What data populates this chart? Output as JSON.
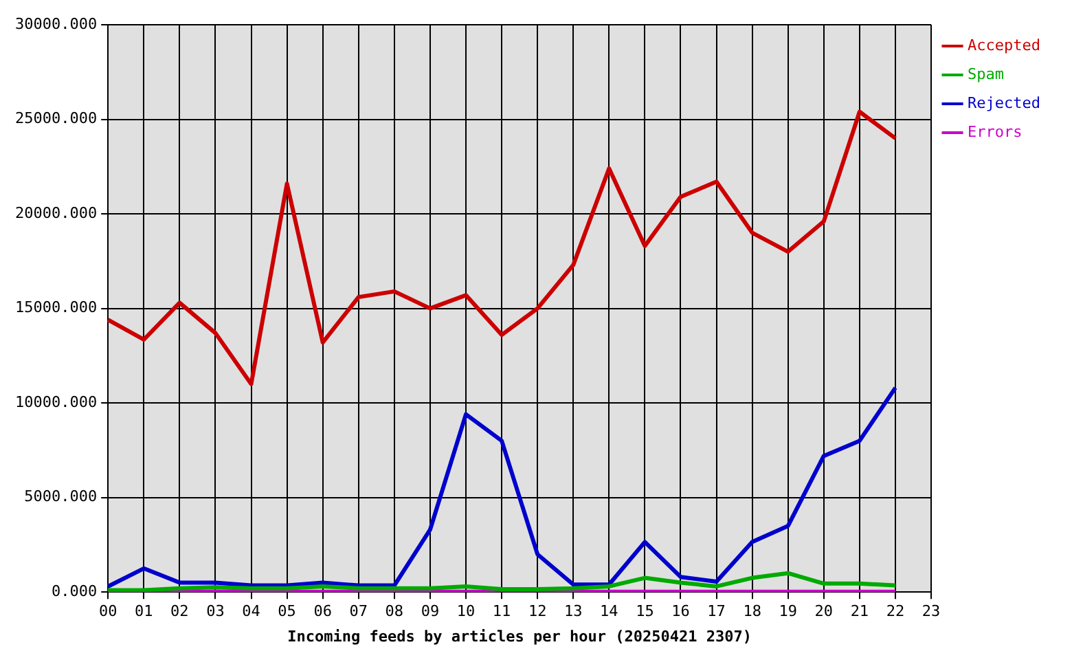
{
  "chart_data": {
    "type": "line",
    "xlabel": "Incoming feeds by articles per hour (20250421 2307)",
    "categories": [
      "00",
      "01",
      "02",
      "03",
      "04",
      "05",
      "06",
      "07",
      "08",
      "09",
      "10",
      "11",
      "12",
      "13",
      "14",
      "15",
      "16",
      "17",
      "18",
      "19",
      "20",
      "21",
      "22",
      "23"
    ],
    "series": [
      {
        "name": "Accepted",
        "color": "#cc0000",
        "values": [
          14400,
          13350,
          15300,
          13700,
          11000,
          21600,
          13200,
          15600,
          15900,
          15000,
          15700,
          13600,
          15000,
          17300,
          22400,
          18300,
          20900,
          21700,
          19000,
          18000,
          19600,
          25400,
          24000,
          null
        ]
      },
      {
        "name": "Spam",
        "color": "#00aa00",
        "values": [
          100,
          100,
          200,
          250,
          200,
          200,
          300,
          200,
          200,
          200,
          300,
          150,
          150,
          200,
          300,
          750,
          500,
          300,
          750,
          1000,
          450,
          450,
          350,
          null
        ]
      },
      {
        "name": "Rejected",
        "color": "#0000cc",
        "values": [
          300,
          1250,
          500,
          500,
          350,
          350,
          500,
          350,
          350,
          3300,
          9400,
          8000,
          2000,
          400,
          400,
          2650,
          800,
          550,
          2650,
          3500,
          7200,
          8000,
          10800,
          null
        ]
      },
      {
        "name": "Errors",
        "color": "#cc00cc",
        "values": [
          20,
          20,
          20,
          20,
          20,
          20,
          20,
          20,
          20,
          20,
          20,
          20,
          20,
          20,
          20,
          20,
          20,
          20,
          20,
          20,
          20,
          20,
          20,
          null
        ]
      }
    ],
    "ylim": [
      0,
      30000
    ],
    "yticks": [
      {
        "value": 0,
        "label": "0.000"
      },
      {
        "value": 5000,
        "label": "5000.000"
      },
      {
        "value": 10000,
        "label": "10000.000"
      },
      {
        "value": 15000,
        "label": "15000.000"
      },
      {
        "value": 20000,
        "label": "20000.000"
      },
      {
        "value": 25000,
        "label": "25000.000"
      },
      {
        "value": 30000,
        "label": "30000.000"
      }
    ],
    "grid": true,
    "legend": "top right",
    "marker": "none",
    "line_style": "solid"
  }
}
